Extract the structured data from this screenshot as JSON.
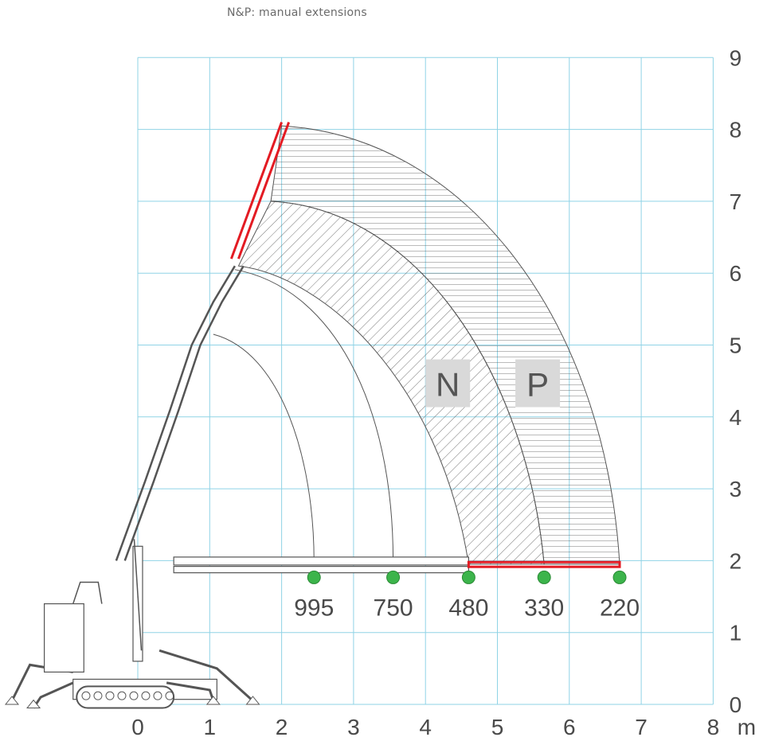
{
  "subtitle": "N&P: manual extensions",
  "axis": {
    "x_ticks": [
      "0",
      "1",
      "2",
      "3",
      "4",
      "5",
      "6",
      "7",
      "8"
    ],
    "x_unit": "m",
    "y_ticks": [
      "0",
      "1",
      "2",
      "3",
      "4",
      "5",
      "6",
      "7",
      "8",
      "9"
    ]
  },
  "zones": [
    {
      "id": "N",
      "label": "N"
    },
    {
      "id": "P",
      "label": "P"
    }
  ],
  "loads": [
    {
      "label": "995",
      "x_m": 2.45,
      "y_m": 1.9
    },
    {
      "label": "750",
      "x_m": 3.55,
      "y_m": 1.9
    },
    {
      "label": "480",
      "x_m": 4.6,
      "y_m": 1.9
    },
    {
      "label": "330",
      "x_m": 5.65,
      "y_m": 1.9
    },
    {
      "label": "220",
      "x_m": 6.7,
      "y_m": 1.9
    }
  ],
  "colors": {
    "grid": "#8fd3e6",
    "extension": "#e31b23",
    "load_marker": "#3cb44b",
    "zone_box": "#d9d9d9",
    "zone_text": "#555555",
    "line": "#555555"
  }
}
